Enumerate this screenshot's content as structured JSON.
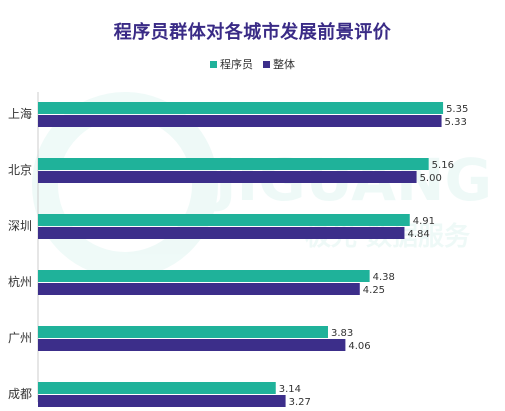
{
  "title": "程序员群体对各城市发展前景评价",
  "watermark": {
    "brand": "JIGUANG",
    "sub": "极光 数据服务"
  },
  "colors": {
    "series1": "#1fb29a",
    "series2": "#3c2e8a",
    "title": "#3a2b86"
  },
  "chart_data": {
    "type": "bar",
    "orientation": "horizontal",
    "categories": [
      "上海",
      "北京",
      "深圳",
      "杭州",
      "广州",
      "成都"
    ],
    "series": [
      {
        "name": "程序员",
        "values": [
          5.35,
          5.16,
          4.91,
          4.38,
          3.83,
          3.14
        ]
      },
      {
        "name": "整体",
        "values": [
          5.33,
          5.0,
          4.84,
          4.25,
          4.06,
          3.27
        ]
      }
    ],
    "xlim": [
      0,
      5.6
    ],
    "grid": false,
    "legend": "top-center"
  }
}
